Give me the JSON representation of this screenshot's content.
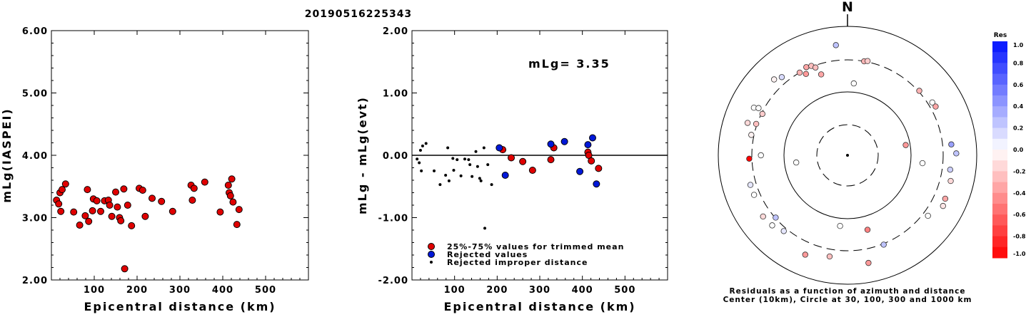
{
  "title": "20190516225343",
  "chart_data": [
    {
      "type": "scatter",
      "name": "left",
      "xlabel": "Epicentral distance (km)",
      "ylabel": "mLg(IASPEI)",
      "xlim": [
        0,
        600
      ],
      "ylim": [
        2.0,
        6.0
      ],
      "xticks": [
        "100",
        "200",
        "300",
        "400",
        "500"
      ],
      "yticks": [
        "2.00",
        "3.00",
        "4.00",
        "5.00",
        "6.00"
      ],
      "points": [
        [
          12,
          3.28
        ],
        [
          17,
          3.22
        ],
        [
          20,
          3.4
        ],
        [
          22,
          3.1
        ],
        [
          25,
          3.45
        ],
        [
          33,
          3.54
        ],
        [
          52,
          3.09
        ],
        [
          66,
          2.88
        ],
        [
          79,
          3.03
        ],
        [
          84,
          3.45
        ],
        [
          87,
          2.94
        ],
        [
          96,
          3.11
        ],
        [
          98,
          3.3
        ],
        [
          106,
          3.27
        ],
        [
          115,
          3.1
        ],
        [
          124,
          3.27
        ],
        [
          133,
          3.28
        ],
        [
          136,
          3.2
        ],
        [
          141,
          3.02
        ],
        [
          150,
          3.41
        ],
        [
          154,
          3.17
        ],
        [
          159,
          3.0
        ],
        [
          162,
          2.95
        ],
        [
          169,
          3.46
        ],
        [
          171,
          2.18
        ],
        [
          178,
          3.2
        ],
        [
          187,
          2.87
        ],
        [
          205,
          3.47
        ],
        [
          213,
          3.44
        ],
        [
          219,
          3.02
        ],
        [
          235,
          3.31
        ],
        [
          257,
          3.26
        ],
        [
          283,
          3.1
        ],
        [
          326,
          3.52
        ],
        [
          329,
          3.28
        ],
        [
          333,
          3.47
        ],
        [
          358,
          3.57
        ],
        [
          394,
          3.09
        ],
        [
          413,
          3.52
        ],
        [
          415,
          3.4
        ],
        [
          418,
          3.35
        ],
        [
          421,
          3.62
        ],
        [
          424,
          3.25
        ],
        [
          433,
          2.89
        ],
        [
          438,
          3.13
        ]
      ]
    },
    {
      "type": "scatter",
      "name": "middle",
      "xlabel": "Epicentral distance (km)",
      "ylabel": "mLg - mLg(evt)",
      "annotation": "mLg= 3.35",
      "xlim": [
        0,
        600
      ],
      "ylim": [
        -2.0,
        2.0
      ],
      "xticks": [
        "100",
        "200",
        "300",
        "400",
        "500"
      ],
      "yticks": [
        "-2.00",
        "-1.00",
        "0.00",
        "1.00",
        "2.00"
      ],
      "legend": [
        {
          "label": "25%-75% values for trimmed mean",
          "color": "#e00000"
        },
        {
          "label": "Rejected values",
          "color": "#0018d8"
        },
        {
          "label": "Rejected improper distance",
          "color": "#000000"
        }
      ],
      "series": [
        {
          "category": "trimmed",
          "color": "#e00000",
          "points": [
            [
              213,
              0.09
            ],
            [
              233,
              -0.04
            ],
            [
              260,
              -0.1
            ],
            [
              283,
              -0.24
            ],
            [
              326,
              -0.07
            ],
            [
              333,
              0.12
            ],
            [
              413,
              0.05
            ],
            [
              415,
              0.0
            ],
            [
              421,
              -0.09
            ],
            [
              438,
              -0.21
            ]
          ]
        },
        {
          "category": "rejected",
          "color": "#0018d8",
          "points": [
            [
              205,
              0.12
            ],
            [
              219,
              -0.32
            ],
            [
              326,
              0.18
            ],
            [
              358,
              0.22
            ],
            [
              394,
              -0.26
            ],
            [
              413,
              0.17
            ],
            [
              424,
              0.28
            ],
            [
              433,
              -0.46
            ]
          ]
        },
        {
          "category": "improper",
          "color": "#000000",
          "points": [
            [
              12,
              -0.06
            ],
            [
              17,
              -0.12
            ],
            [
              20,
              0.08
            ],
            [
              22,
              -0.25
            ],
            [
              25,
              0.15
            ],
            [
              33,
              0.19
            ],
            [
              52,
              -0.25
            ],
            [
              66,
              -0.47
            ],
            [
              79,
              -0.32
            ],
            [
              84,
              0.12
            ],
            [
              87,
              -0.41
            ],
            [
              96,
              -0.05
            ],
            [
              98,
              -0.24
            ],
            [
              106,
              -0.07
            ],
            [
              115,
              -0.33
            ],
            [
              124,
              -0.06
            ],
            [
              133,
              -0.07
            ],
            [
              136,
              -0.15
            ],
            [
              141,
              -0.34
            ],
            [
              150,
              0.06
            ],
            [
              154,
              -0.18
            ],
            [
              159,
              -0.37
            ],
            [
              162,
              -0.41
            ],
            [
              169,
              0.12
            ],
            [
              171,
              -1.17
            ],
            [
              178,
              -0.15
            ],
            [
              187,
              -0.47
            ]
          ]
        }
      ]
    },
    {
      "type": "scatter",
      "name": "polar",
      "north_label": "N",
      "caption_line1": "Residuals as a function of azimuth and distance",
      "caption_line2": "Center (10km), Circle at 30, 100, 300 and 1000 km",
      "colorbar_title": "Res",
      "colorbar_ticks": [
        "1.0",
        "0.8",
        "0.6",
        "0.4",
        "0.2",
        "0.0",
        "-0.2",
        "-0.4",
        "-0.6",
        "-0.8",
        "-1.0"
      ],
      "points": [
        {
          "az": 354,
          "dist": 520,
          "res": 0.25
        },
        {
          "az": 320,
          "dist": 380,
          "res": 0.15
        },
        {
          "az": 316,
          "dist": 430,
          "res": -0.05
        },
        {
          "az": 330,
          "dist": 300,
          "res": -0.3
        },
        {
          "az": 335,
          "dist": 320,
          "res": -0.35
        },
        {
          "az": 338,
          "dist": 310,
          "res": -0.25
        },
        {
          "az": 333,
          "dist": 260,
          "res": -0.4
        },
        {
          "az": 340,
          "dist": 280,
          "res": -0.25
        },
        {
          "az": 10,
          "dist": 300,
          "res": -0.3
        },
        {
          "az": 12,
          "dist": 310,
          "res": -0.2
        },
        {
          "az": 48,
          "dist": 310,
          "res": -0.3
        },
        {
          "az": 58,
          "dist": 350,
          "res": 0.0
        },
        {
          "az": 61,
          "dist": 360,
          "res": -0.35
        },
        {
          "az": 80,
          "dist": 85,
          "res": -0.4
        },
        {
          "az": 84,
          "dist": 410,
          "res": 0.4
        },
        {
          "az": 98,
          "dist": 400,
          "res": 0.2
        },
        {
          "az": 104,
          "dist": 440,
          "res": -0.15
        },
        {
          "az": 114,
          "dist": 450,
          "res": -0.35
        },
        {
          "az": 118,
          "dist": 470,
          "res": -0.1
        },
        {
          "az": 127,
          "dist": 360,
          "res": 0.0
        },
        {
          "az": 158,
          "dist": 310,
          "res": 0.25
        },
        {
          "az": 165,
          "dist": 160,
          "res": -0.5
        },
        {
          "az": 169,
          "dist": 500,
          "res": -0.4
        },
        {
          "az": 190,
          "dist": 390,
          "res": -0.25
        },
        {
          "az": 203,
          "dist": 470,
          "res": -0.4
        },
        {
          "az": 186,
          "dist": 130,
          "res": 0.0
        },
        {
          "az": 229,
          "dist": 295,
          "res": 0.25
        },
        {
          "az": 234,
          "dist": 410,
          "res": -0.15
        },
        {
          "az": 227,
          "dist": 390,
          "res": 0.0
        },
        {
          "az": 247,
          "dist": 370,
          "res": 0.0
        },
        {
          "az": 220,
          "dist": 340,
          "res": 0.1
        },
        {
          "az": 253,
          "dist": 370,
          "res": 0.1
        },
        {
          "az": 270,
          "dist": 220,
          "res": 0.0
        },
        {
          "az": 268,
          "dist": 330,
          "res": -1.0
        },
        {
          "az": 282,
          "dist": 330,
          "res": -0.05
        },
        {
          "az": 288,
          "dist": 420,
          "res": -0.15
        },
        {
          "az": 297,
          "dist": 420,
          "res": 0.0
        },
        {
          "az": 298,
          "dist": 360,
          "res": 0.0
        },
        {
          "az": 289,
          "dist": 310,
          "res": -0.25
        },
        {
          "az": 296,
          "dist": 290,
          "res": -0.2
        },
        {
          "az": 5,
          "dist": 135,
          "res": 0.0
        },
        {
          "az": 342,
          "dist": 210,
          "res": -0.35
        },
        {
          "az": 89,
          "dist": 480,
          "res": 0.25
        },
        {
          "az": 96,
          "dist": 150,
          "res": 0.0
        },
        {
          "az": 262,
          "dist": 65,
          "res": 0.0
        }
      ]
    }
  ]
}
